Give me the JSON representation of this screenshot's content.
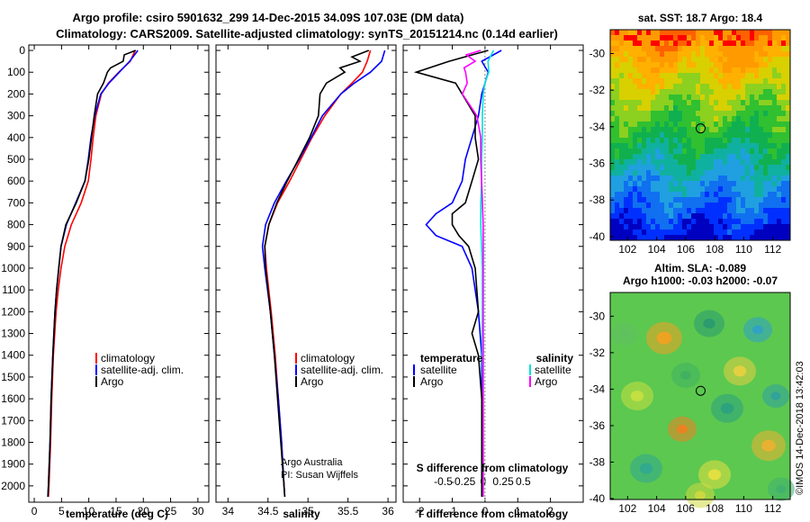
{
  "header": {
    "title_line1": "Argo profile: csiro 5901632_299 14-Dec-2015 34.09S 107.03E (DM data)",
    "title_line2": "Climatology: CARS2009. Satellite-adjusted climatology: synTS_20151214.nc (0.14d earlier)"
  },
  "colors": {
    "climatology": "#ff0000",
    "satellite": "#0000ff",
    "argo": "#000000",
    "sal_satellite": "#00e0e0",
    "sal_argo": "#ff00ff"
  },
  "depth_ticks": [
    0,
    100,
    200,
    300,
    400,
    500,
    600,
    700,
    800,
    900,
    1000,
    1100,
    1200,
    1300,
    1400,
    1500,
    1600,
    1700,
    1800,
    1900,
    2000
  ],
  "temp_panel": {
    "xlabel": "temperature (deg C)",
    "xticks": [
      0,
      5,
      10,
      15,
      20,
      25,
      30
    ],
    "legend": [
      "climatology",
      "satellite-adj. clim.",
      "Argo"
    ]
  },
  "sal_panel": {
    "xlabel": "salinity",
    "xticks": [
      34,
      34.5,
      35,
      35.5,
      36
    ],
    "legend": [
      "climatology",
      "satellite-adj. clim.",
      "Argo"
    ],
    "credit1": "Argo Australia",
    "credit2": "PI: Susan Wijffels"
  },
  "diff_panel": {
    "xlabel": "T difference from climatology",
    "xticks": [
      -2,
      -1,
      0,
      1,
      2
    ],
    "xtick_labels": [
      "-2",
      "-1",
      "0",
      "1",
      "2"
    ],
    "top_label": "S difference from climatology",
    "top_ticks": [
      -0.5,
      -0.25,
      0,
      0.25,
      0.5
    ],
    "top_tick_labels": [
      "-0.5",
      "-0.25",
      "0",
      "0.25",
      "0.5"
    ],
    "legend_temp_title": "temperature",
    "legend_temp": [
      "satellite",
      "Argo"
    ],
    "legend_sal_title": "salinity",
    "legend_sal": [
      "satellite",
      "Argo"
    ]
  },
  "sst_map": {
    "title": "sat. SST: 18.7 Argo: 18.4",
    "xticks": [
      102,
      104,
      106,
      108,
      110,
      112
    ],
    "yticks": [
      -30,
      -32,
      -34,
      -36,
      -38,
      -40
    ],
    "marker": {
      "lon": 107.03,
      "lat": -34.09
    }
  },
  "sla_map": {
    "title1": "Altim. SLA: -0.089",
    "title2": "Argo h1000: -0.03 h2000: -0.07",
    "xticks": [
      102,
      104,
      106,
      108,
      110,
      112
    ],
    "yticks": [
      -30,
      -32,
      -34,
      -36,
      -38,
      -40
    ],
    "marker": {
      "lon": 107.03,
      "lat": -34.09
    }
  },
  "footer_stamp": "©IMOS 14-Dec-2018 13:42:03",
  "chart_data": [
    {
      "type": "line",
      "title": "",
      "xlabel": "temperature (deg C)",
      "ylabel": "",
      "xlim": [
        -1,
        32
      ],
      "ylim": [
        2075,
        -25
      ],
      "series": [
        {
          "name": "climatology",
          "depth": [
            0,
            50,
            100,
            150,
            200,
            300,
            400,
            500,
            600,
            700,
            800,
            900,
            1000,
            1100,
            1200,
            1400,
            1600,
            1800,
            2000,
            2050
          ],
          "values": [
            18.5,
            17.6,
            15.5,
            13.6,
            12.3,
            11.3,
            10.8,
            10.4,
            9.9,
            8.6,
            6.8,
            5.6,
            4.9,
            4.4,
            4.0,
            3.5,
            3.2,
            3.0,
            2.7,
            2.6
          ]
        },
        {
          "name": "satellite-adj. clim.",
          "depth": [
            0,
            50,
            100,
            150,
            200,
            300,
            400,
            500,
            600,
            700,
            800,
            900,
            1000,
            1100,
            1200,
            1400,
            1600,
            1800,
            2000,
            2050
          ],
          "values": [
            19.0,
            17.5,
            15.6,
            13.7,
            12.2,
            11.1,
            10.4,
            9.9,
            9.3,
            7.6,
            5.9,
            4.9,
            4.5,
            4.1,
            3.8,
            3.4,
            3.1,
            2.9,
            2.6,
            2.5
          ]
        },
        {
          "name": "Argo",
          "depth": [
            0,
            20,
            50,
            80,
            100,
            150,
            200,
            300,
            400,
            500,
            600,
            700,
            800,
            900,
            1000,
            1100,
            1200,
            1400,
            1600,
            1800,
            2000,
            2050
          ],
          "values": [
            18.6,
            16.5,
            16.3,
            14.0,
            13.4,
            12.7,
            11.6,
            11.0,
            10.5,
            10.0,
            9.3,
            7.7,
            5.8,
            4.9,
            4.5,
            4.1,
            3.8,
            3.4,
            3.1,
            2.9,
            2.6,
            2.5
          ]
        }
      ]
    },
    {
      "type": "line",
      "title": "",
      "xlabel": "salinity",
      "ylabel": "",
      "xlim": [
        33.85,
        36.1
      ],
      "ylim": [
        2075,
        -25
      ],
      "series": [
        {
          "name": "climatology",
          "depth": [
            0,
            50,
            100,
            150,
            200,
            300,
            400,
            500,
            600,
            700,
            800,
            900,
            1000,
            1200,
            1400,
            1600,
            1800,
            2000,
            2050
          ],
          "values": [
            35.78,
            35.74,
            35.68,
            35.55,
            35.41,
            35.21,
            35.05,
            34.91,
            34.77,
            34.62,
            34.51,
            34.46,
            34.48,
            34.54,
            34.59,
            34.63,
            34.67,
            34.7,
            34.71
          ]
        },
        {
          "name": "satellite-adj. clim.",
          "depth": [
            0,
            50,
            100,
            150,
            200,
            300,
            400,
            500,
            600,
            700,
            800,
            900,
            1000,
            1200,
            1400,
            1600,
            1800,
            2000,
            2050
          ],
          "values": [
            35.96,
            35.92,
            35.78,
            35.58,
            35.41,
            35.18,
            35.04,
            34.89,
            34.73,
            34.58,
            34.47,
            34.43,
            34.46,
            34.53,
            34.58,
            34.63,
            34.67,
            34.7,
            34.71
          ]
        },
        {
          "name": "Argo",
          "depth": [
            0,
            30,
            50,
            80,
            100,
            150,
            200,
            300,
            400,
            500,
            600,
            700,
            800,
            900,
            1000,
            1200,
            1400,
            1600,
            1800,
            2000,
            2050
          ],
          "values": [
            35.76,
            35.55,
            35.65,
            35.4,
            35.46,
            35.23,
            35.15,
            35.13,
            35.02,
            34.88,
            34.74,
            34.61,
            34.51,
            34.46,
            34.47,
            34.53,
            34.58,
            34.62,
            34.66,
            34.7,
            34.71
          ]
        }
      ]
    },
    {
      "type": "line",
      "title": "",
      "xlabel": "T difference from climatology",
      "ylabel": "",
      "xlim": [
        -2.5,
        3.0
      ],
      "ylim": [
        2075,
        -25
      ],
      "series": [
        {
          "name": "satellite",
          "quantity": "temperature",
          "depth": [
            0,
            50,
            100,
            200,
            300,
            400,
            500,
            600,
            700,
            750,
            800,
            850,
            900,
            1000,
            1200,
            1400,
            1600,
            1800,
            2000,
            2050
          ],
          "values": [
            0.5,
            -0.1,
            0.1,
            -0.1,
            -0.2,
            -0.4,
            -0.6,
            -0.7,
            -1.0,
            -1.5,
            -1.8,
            -1.5,
            -0.7,
            -0.4,
            -0.2,
            -0.1,
            -0.1,
            -0.1,
            -0.1,
            -0.1
          ]
        },
        {
          "name": "Argo",
          "quantity": "temperature",
          "depth": [
            0,
            50,
            100,
            150,
            200,
            300,
            400,
            500,
            600,
            700,
            750,
            800,
            850,
            900,
            1000,
            1200,
            1300,
            1400,
            1600,
            1800,
            2000,
            2050
          ],
          "values": [
            0.1,
            -1.1,
            -2.1,
            -0.9,
            -0.7,
            -0.3,
            -0.3,
            -0.2,
            -0.4,
            -0.6,
            -1.0,
            -1.0,
            -0.8,
            -0.5,
            -0.3,
            -0.2,
            -0.4,
            -0.2,
            -0.1,
            -0.1,
            -0.1,
            -0.1
          ]
        },
        {
          "name": "satellite",
          "quantity": "salinity",
          "depth": [
            0,
            50,
            100,
            150,
            200,
            300,
            400,
            500,
            600,
            700,
            800,
            900,
            1000,
            1200,
            1400,
            1600,
            1800,
            2000,
            2050
          ],
          "values": [
            0.13,
            0.06,
            0.07,
            0.02,
            0.0,
            -0.01,
            -0.01,
            -0.02,
            -0.02,
            -0.03,
            -0.03,
            -0.02,
            -0.01,
            -0.01,
            -0.01,
            0.0,
            0.0,
            0.0,
            0.0
          ]
        },
        {
          "name": "Argo",
          "quantity": "salinity",
          "depth": [
            0,
            20,
            50,
            80,
            100,
            150,
            200,
            300,
            400,
            500,
            600,
            700,
            800,
            900,
            1000,
            1200,
            1400,
            1600,
            1800,
            2000,
            2050
          ],
          "values": [
            -0.03,
            -0.21,
            -0.1,
            -0.24,
            -0.22,
            -0.2,
            -0.26,
            -0.08,
            -0.03,
            -0.03,
            -0.02,
            -0.01,
            0.0,
            0.0,
            0.0,
            0.0,
            0.0,
            0.0,
            0.0,
            0.0,
            0.0
          ]
        }
      ]
    }
  ]
}
